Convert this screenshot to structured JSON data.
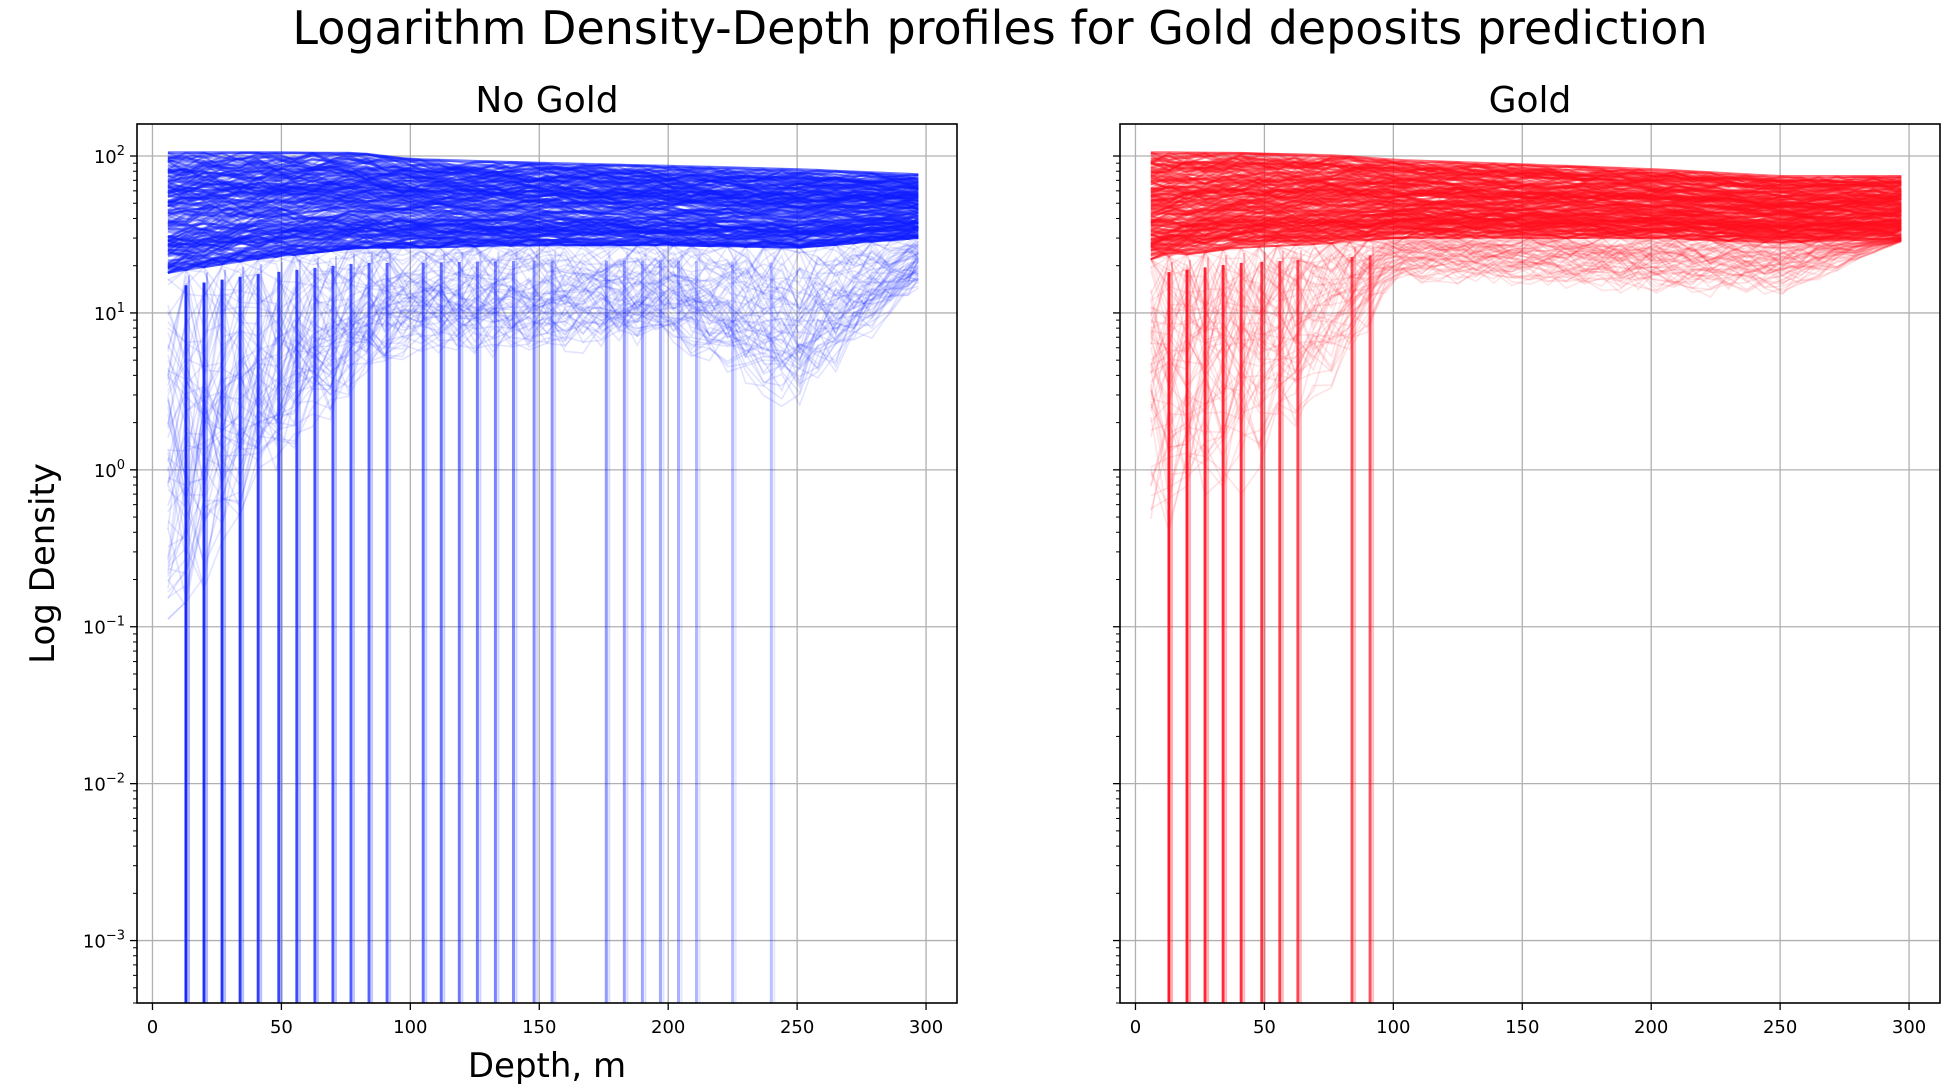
{
  "figure": {
    "suptitle": "Logarithm Density-Depth profiles for Gold deposits prediction"
  },
  "chart_data": [
    {
      "type": "line",
      "title": "No Gold",
      "xlabel": "Depth, m",
      "ylabel": "Log Density",
      "yscale": "log",
      "xlim": [
        -6,
        312
      ],
      "ylim": [
        0.0004,
        160
      ],
      "xticks": [
        0,
        50,
        100,
        150,
        200,
        250,
        300
      ],
      "yticks": [
        "10^-3",
        "10^-2",
        "10^-1",
        "10^0",
        "10^1",
        "10^2"
      ],
      "grid": true,
      "color": "#0d1eff",
      "depth_range": [
        6,
        297
      ],
      "depth_step": 7,
      "envelope": {
        "x": [
          6,
          40,
          80,
          100,
          150,
          200,
          250,
          297
        ],
        "upper": [
          105,
          105,
          104,
          95,
          90,
          86,
          82,
          76
        ],
        "dense_lower": [
          18,
          22,
          26,
          26,
          27,
          27,
          26,
          30
        ],
        "sparse_lower": [
          0.06,
          0.5,
          3,
          5,
          5,
          6,
          2,
          14
        ]
      },
      "drop_to_zero_depths": [
        13,
        20,
        27,
        34,
        41,
        49,
        56,
        63,
        70,
        77,
        84,
        91,
        105,
        112,
        119,
        126,
        133,
        140,
        148,
        155,
        176,
        183,
        190,
        197,
        204,
        211,
        225,
        240
      ]
    },
    {
      "type": "line",
      "title": "Gold",
      "xlabel": "",
      "ylabel": "",
      "yscale": "log",
      "xlim": [
        -6,
        312
      ],
      "ylim": [
        0.0004,
        160
      ],
      "xticks": [
        0,
        50,
        100,
        150,
        200,
        250,
        300
      ],
      "yticks": [],
      "grid": true,
      "color": "#ff0d1e",
      "depth_range": [
        6,
        297
      ],
      "depth_step": 7,
      "envelope": {
        "x": [
          6,
          40,
          80,
          100,
          150,
          200,
          250,
          297
        ],
        "upper": [
          105,
          104,
          100,
          94,
          88,
          82,
          74,
          74
        ],
        "dense_lower": [
          22,
          26,
          28,
          30,
          30,
          30,
          28,
          30
        ],
        "sparse_lower": [
          0.2,
          0.5,
          3,
          15,
          14,
          12,
          12,
          28
        ]
      },
      "drop_to_zero_depths": [
        13,
        20,
        27,
        34,
        41,
        49,
        56,
        63,
        84,
        91
      ]
    }
  ]
}
